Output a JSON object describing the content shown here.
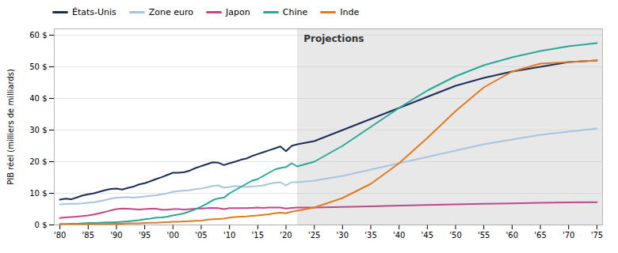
{
  "chart_data": {
    "type": "line",
    "ylabel": "PIB réel (milliers de milliards)",
    "x": [
      1980,
      1981,
      1982,
      1983,
      1984,
      1985,
      1986,
      1987,
      1988,
      1989,
      1990,
      1991,
      1992,
      1993,
      1994,
      1995,
      1996,
      1997,
      1998,
      1999,
      2000,
      2001,
      2002,
      2003,
      2004,
      2005,
      2006,
      2007,
      2008,
      2009,
      2010,
      2011,
      2012,
      2013,
      2014,
      2015,
      2016,
      2017,
      2018,
      2019,
      2020,
      2021,
      2022,
      2025,
      2030,
      2035,
      2040,
      2045,
      2050,
      2055,
      2060,
      2065,
      2070,
      2075
    ],
    "series": [
      {
        "name": "États-Unis",
        "color": "#1a2e5a",
        "values": [
          8.0,
          8.3,
          8.1,
          8.7,
          9.3,
          9.7,
          10.0,
          10.5,
          11.0,
          11.4,
          11.5,
          11.2,
          11.7,
          12.1,
          12.8,
          13.2,
          13.8,
          14.5,
          15.1,
          15.8,
          16.5,
          16.5,
          16.7,
          17.2,
          18.0,
          18.6,
          19.2,
          19.8,
          19.7,
          18.9,
          19.5,
          20.0,
          20.6,
          21.0,
          21.8,
          22.4,
          23.0,
          23.6,
          24.2,
          24.8,
          23.3,
          25.0,
          25.5,
          26.5,
          30.0,
          33.5,
          37.0,
          40.5,
          44.0,
          46.5,
          48.5,
          50.0,
          51.5,
          52.0
        ]
      },
      {
        "name": "Zone euro",
        "color": "#a8c4e0",
        "values": [
          6.5,
          6.6,
          6.7,
          6.7,
          6.8,
          7.0,
          7.2,
          7.5,
          7.9,
          8.3,
          8.6,
          8.7,
          8.8,
          8.6,
          8.8,
          9.0,
          9.2,
          9.4,
          9.7,
          10.0,
          10.5,
          10.7,
          10.9,
          11.0,
          11.3,
          11.5,
          11.9,
          12.3,
          12.5,
          11.8,
          12.0,
          12.3,
          12.1,
          12.0,
          12.2,
          12.3,
          12.5,
          13.0,
          13.3,
          13.5,
          12.5,
          13.5,
          13.5,
          14.0,
          15.5,
          17.5,
          19.5,
          21.5,
          23.5,
          25.5,
          27.0,
          28.5,
          29.5,
          30.5
        ]
      },
      {
        "name": "Japon",
        "color": "#c0478a",
        "values": [
          2.2,
          2.4,
          2.5,
          2.6,
          2.8,
          3.0,
          3.3,
          3.7,
          4.1,
          4.6,
          5.0,
          5.2,
          5.1,
          5.0,
          4.9,
          5.0,
          5.1,
          5.1,
          4.8,
          4.8,
          5.0,
          5.0,
          4.9,
          5.0,
          5.1,
          5.2,
          5.3,
          5.4,
          5.3,
          5.0,
          5.3,
          5.3,
          5.3,
          5.3,
          5.4,
          5.5,
          5.4,
          5.5,
          5.5,
          5.5,
          5.2,
          5.4,
          5.5,
          5.5,
          5.7,
          5.9,
          6.1,
          6.3,
          6.5,
          6.7,
          6.8,
          7.0,
          7.1,
          7.2
        ]
      },
      {
        "name": "Chine",
        "color": "#2aa897",
        "values": [
          0.3,
          0.3,
          0.4,
          0.4,
          0.5,
          0.6,
          0.6,
          0.7,
          0.8,
          0.8,
          0.9,
          1.0,
          1.1,
          1.3,
          1.5,
          1.8,
          2.0,
          2.3,
          2.4,
          2.6,
          3.0,
          3.3,
          3.7,
          4.3,
          5.0,
          5.8,
          6.7,
          7.8,
          8.4,
          8.6,
          10.0,
          11.0,
          12.0,
          13.0,
          14.0,
          14.5,
          15.5,
          16.5,
          17.5,
          18.0,
          18.3,
          19.5,
          18.5,
          20.0,
          25.0,
          31.0,
          37.0,
          42.5,
          47.0,
          50.5,
          53.0,
          55.0,
          56.5,
          57.5
        ]
      },
      {
        "name": "Inde",
        "color": "#e07b20",
        "values": [
          0.2,
          0.2,
          0.2,
          0.2,
          0.2,
          0.3,
          0.3,
          0.3,
          0.3,
          0.4,
          0.4,
          0.4,
          0.5,
          0.5,
          0.5,
          0.6,
          0.7,
          0.7,
          0.8,
          0.9,
          1.0,
          1.0,
          1.1,
          1.2,
          1.3,
          1.4,
          1.6,
          1.8,
          1.9,
          2.0,
          2.3,
          2.5,
          2.6,
          2.7,
          2.9,
          3.0,
          3.2,
          3.4,
          3.7,
          3.9,
          3.7,
          4.2,
          4.5,
          5.5,
          8.5,
          13.0,
          19.5,
          27.5,
          36.0,
          43.5,
          48.5,
          51.0,
          51.5,
          52.0
        ]
      }
    ],
    "xlim": [
      1979,
      2076
    ],
    "xticks": [
      {
        "value": 1980,
        "label": "'80"
      },
      {
        "value": 1985,
        "label": "'85"
      },
      {
        "value": 1990,
        "label": "'90"
      },
      {
        "value": 1995,
        "label": "'95"
      },
      {
        "value": 2000,
        "label": "'00"
      },
      {
        "value": 2005,
        "label": "'05"
      },
      {
        "value": 2010,
        "label": "'10"
      },
      {
        "value": 2015,
        "label": "'15"
      },
      {
        "value": 2020,
        "label": "'20"
      },
      {
        "value": 2025,
        "label": "'25"
      },
      {
        "value": 2030,
        "label": "'30"
      },
      {
        "value": 2035,
        "label": "'35"
      },
      {
        "value": 2040,
        "label": "'40"
      },
      {
        "value": 2045,
        "label": "'45"
      },
      {
        "value": 2050,
        "label": "'50"
      },
      {
        "value": 2055,
        "label": "'55"
      },
      {
        "value": 2060,
        "label": "'60"
      },
      {
        "value": 2065,
        "label": "'65"
      },
      {
        "value": 2070,
        "label": "'70"
      },
      {
        "value": 2075,
        "label": "'75"
      }
    ],
    "ylim": [
      0,
      62
    ],
    "yticks": [
      {
        "value": 0,
        "label": "0 $"
      },
      {
        "value": 10,
        "label": "10 $"
      },
      {
        "value": 20,
        "label": "20 $"
      },
      {
        "value": 30,
        "label": "30 $"
      },
      {
        "value": 40,
        "label": "40 $"
      },
      {
        "value": 50,
        "label": "50 $"
      },
      {
        "value": 60,
        "label": "60 $"
      }
    ],
    "shaded_range": {
      "x": [
        2022,
        2076
      ],
      "label": "Projections",
      "color": "#e8e8e8"
    },
    "grid": true,
    "legend": "top"
  }
}
